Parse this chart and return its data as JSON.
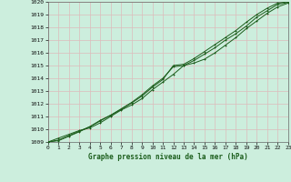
{
  "xlabel": "Graphe pression niveau de la mer (hPa)",
  "ylim": [
    1009,
    1020
  ],
  "xlim": [
    0,
    23
  ],
  "yticks": [
    1009,
    1010,
    1011,
    1012,
    1013,
    1014,
    1015,
    1016,
    1017,
    1018,
    1019,
    1020
  ],
  "xticks": [
    0,
    1,
    2,
    3,
    4,
    5,
    6,
    7,
    8,
    9,
    10,
    11,
    12,
    13,
    14,
    15,
    16,
    17,
    18,
    19,
    20,
    21,
    22,
    23
  ],
  "bg_color": "#cceedd",
  "grid_color": "#ddbbbb",
  "line_color": "#1a5c1a",
  "line1_y": [
    1009.0,
    1009.3,
    1009.6,
    1009.9,
    1010.1,
    1010.5,
    1011.0,
    1011.5,
    1011.9,
    1012.4,
    1013.1,
    1013.7,
    1014.3,
    1015.0,
    1015.2,
    1015.5,
    1016.0,
    1016.6,
    1017.2,
    1017.9,
    1018.5,
    1019.1,
    1019.6,
    1019.9
  ],
  "line2_y": [
    1009.0,
    1009.15,
    1009.5,
    1009.85,
    1010.2,
    1010.7,
    1011.1,
    1011.6,
    1012.1,
    1012.7,
    1013.4,
    1014.0,
    1014.9,
    1015.0,
    1015.4,
    1015.9,
    1016.4,
    1017.0,
    1017.5,
    1018.1,
    1018.8,
    1019.3,
    1019.8,
    1019.95
  ],
  "line3_y": [
    1009.0,
    1009.1,
    1009.45,
    1009.8,
    1010.2,
    1010.65,
    1011.1,
    1011.55,
    1012.05,
    1012.6,
    1013.3,
    1013.9,
    1015.0,
    1015.1,
    1015.55,
    1016.1,
    1016.65,
    1017.2,
    1017.75,
    1018.4,
    1019.0,
    1019.5,
    1019.9,
    1020.0
  ]
}
